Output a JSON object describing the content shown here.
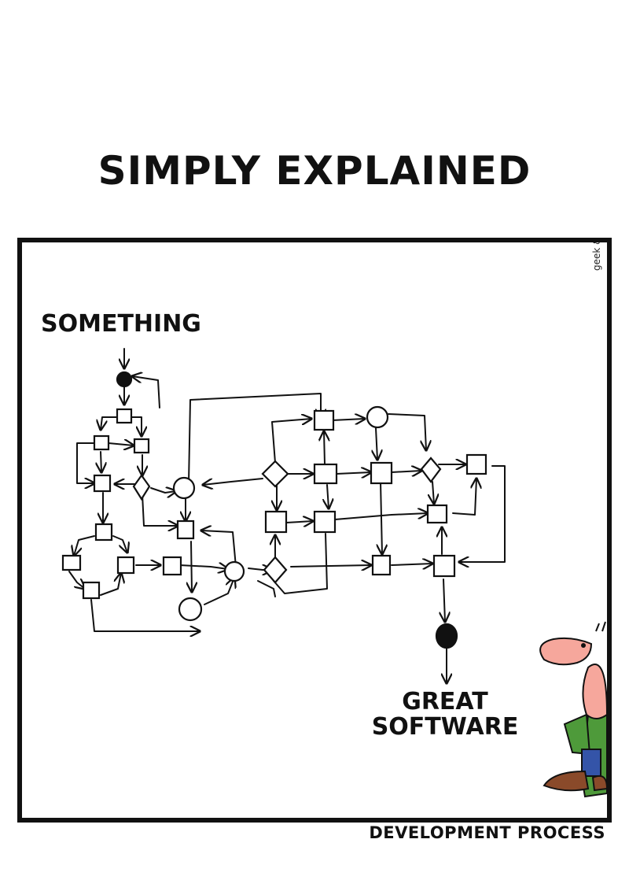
{
  "title": "SIMPLY EXPLAINED",
  "caption": "DEVELOPMENT PROCESS",
  "credit": "geek & poke",
  "diagram": {
    "start_label": "SOMETHING",
    "end_label_line1": "GREAT",
    "end_label_line2": "SOFTWARE"
  }
}
